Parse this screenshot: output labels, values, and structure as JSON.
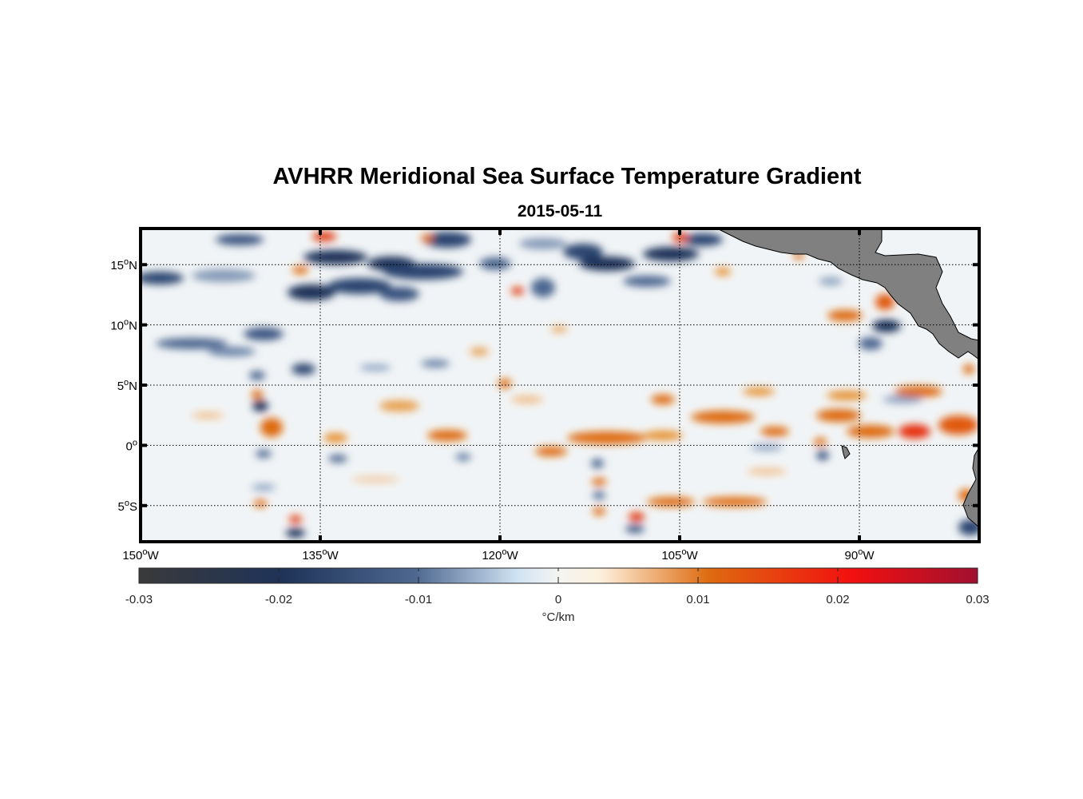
{
  "title": "AVHRR Meridional Sea Surface Temperature Gradient",
  "subtitle": "2015-05-11",
  "map": {
    "lon_range": [
      -150,
      -80
    ],
    "lat_range": [
      -8,
      18
    ],
    "lat_ticks": [
      {
        "lat": 15,
        "text": "15",
        "hemi": "N"
      },
      {
        "lat": 10,
        "text": "10",
        "hemi": "N"
      },
      {
        "lat": 5,
        "text": "5",
        "hemi": "N"
      },
      {
        "lat": 0,
        "text": "0",
        "hemi": ""
      },
      {
        "lat": -5,
        "text": "5",
        "hemi": "S"
      }
    ],
    "lon_ticks": [
      {
        "lon": -150,
        "text": "150",
        "hemi": "W"
      },
      {
        "lon": -135,
        "text": "135",
        "hemi": "W"
      },
      {
        "lon": -120,
        "text": "120",
        "hemi": "W"
      },
      {
        "lon": -105,
        "text": "105",
        "hemi": "W"
      },
      {
        "lon": -90,
        "text": "90",
        "hemi": "W"
      }
    ],
    "land_color": "#808080",
    "grid": "dotted"
  },
  "colorbar": {
    "range": [
      -0.03,
      0.03
    ],
    "ticks": [
      "-0.03",
      "-0.02",
      "-0.01",
      "0",
      "0.01",
      "0.02",
      "0.03"
    ],
    "unit": "°C/km",
    "colors": [
      "#3a3a3a",
      "#1f3358",
      "#4e6890",
      "#cfe2f2",
      "#fdf1dd",
      "#de6b10",
      "#f21010",
      "#a11030"
    ]
  }
}
